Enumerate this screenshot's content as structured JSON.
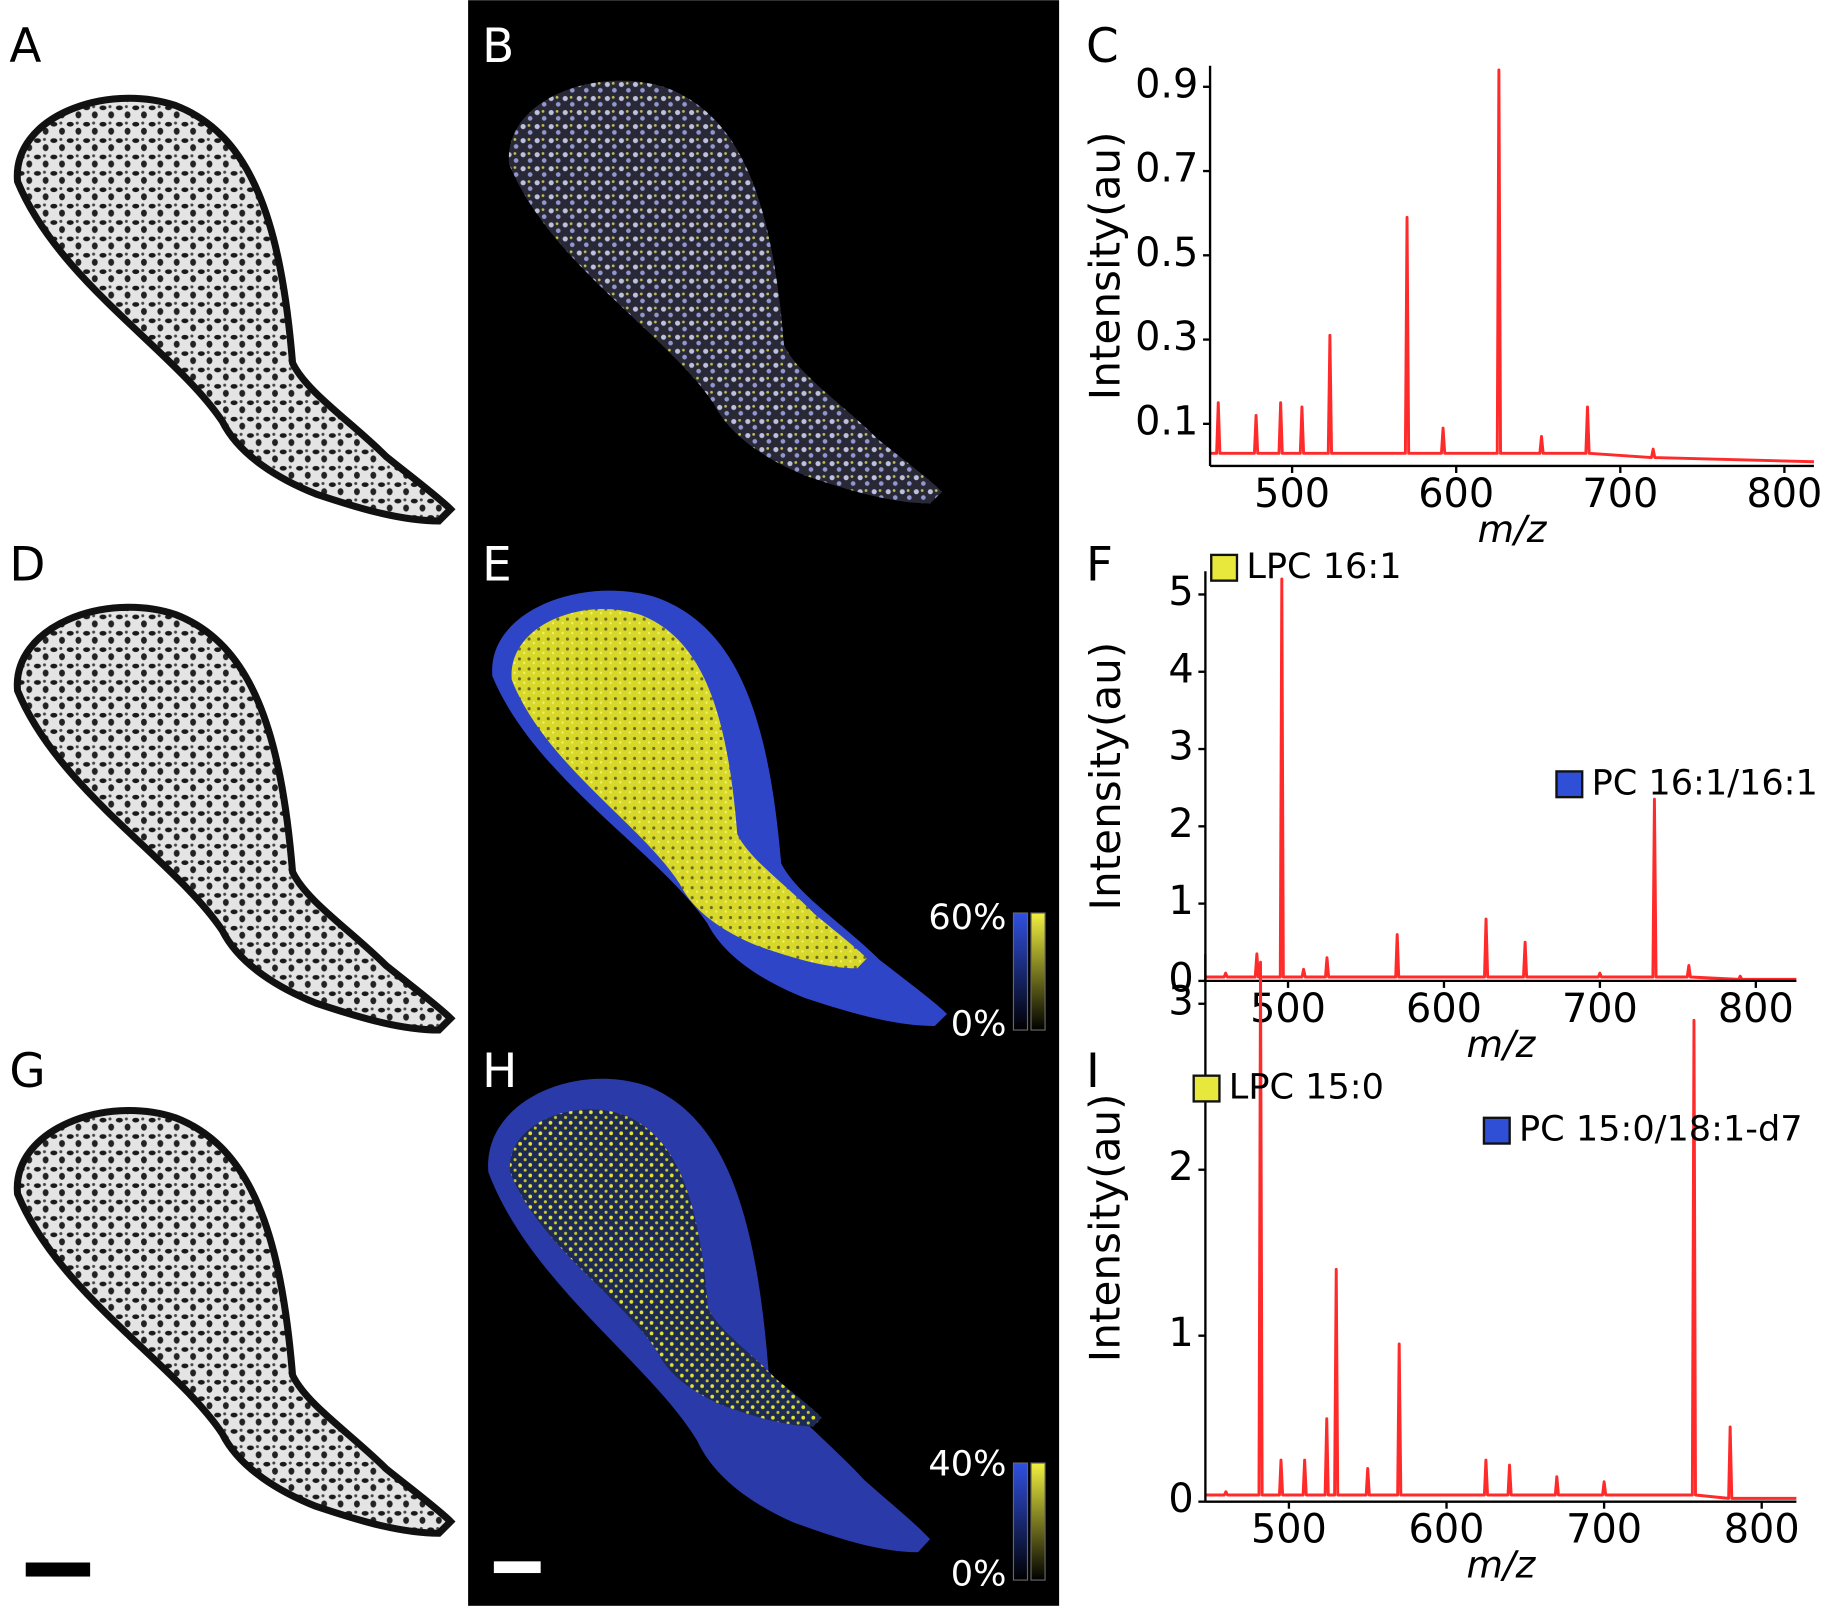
{
  "panel_labels": [
    "A",
    "B",
    "C",
    "D",
    "E",
    "F",
    "G",
    "H",
    "I"
  ],
  "colorbars": [
    {
      "max": "60%",
      "min": "0%"
    },
    {
      "max": "40%",
      "min": "0%"
    }
  ],
  "chart_data": [
    {
      "type": "line",
      "xlabel": "m/z",
      "ylabel": "Intensity(au)",
      "color": "#ff2a2a",
      "xlim": [
        450,
        818
      ],
      "ylim": [
        0,
        0.95
      ],
      "xticks": [
        500,
        600,
        700,
        800
      ],
      "yticks": [
        0.1,
        0.3,
        0.5,
        0.7,
        0.9
      ],
      "x": [
        450,
        454,
        455,
        456,
        477,
        478,
        479,
        492,
        493,
        494,
        505,
        506,
        507,
        522,
        523,
        524,
        569,
        570,
        571,
        591,
        592,
        593,
        625,
        626,
        627,
        651,
        652,
        653,
        679,
        680,
        681,
        719,
        720,
        721,
        818
      ],
      "values": [
        0.03,
        0.03,
        0.15,
        0.03,
        0.03,
        0.12,
        0.03,
        0.03,
        0.15,
        0.03,
        0.03,
        0.14,
        0.03,
        0.03,
        0.31,
        0.03,
        0.03,
        0.59,
        0.03,
        0.03,
        0.09,
        0.03,
        0.03,
        0.94,
        0.03,
        0.03,
        0.07,
        0.03,
        0.03,
        0.14,
        0.03,
        0.02,
        0.04,
        0.02,
        0.01
      ]
    },
    {
      "type": "line",
      "xlabel": "m/z",
      "ylabel": "Intensity(au)",
      "color": "#ff2a2a",
      "xlim": [
        447,
        826
      ],
      "ylim": [
        0,
        5.3
      ],
      "xticks": [
        500,
        600,
        700,
        800
      ],
      "yticks": [
        0,
        1,
        2,
        3,
        4,
        5
      ],
      "annotations": [
        {
          "text": "LPC 16:1",
          "color": "#e8e83c"
        },
        {
          "text": "PC 16:1/16:1",
          "color": "#2e4fd6"
        }
      ],
      "x": [
        447,
        459,
        460,
        461,
        479,
        480,
        481,
        495,
        496,
        497,
        509,
        510,
        511,
        524,
        525,
        526,
        569,
        570,
        571,
        626,
        627,
        628,
        651,
        652,
        653,
        699,
        700,
        701,
        734,
        735,
        736,
        756,
        757,
        758,
        789,
        790,
        791,
        826
      ],
      "values": [
        0.05,
        0.05,
        0.1,
        0.05,
        0.05,
        0.35,
        0.05,
        0.05,
        5.2,
        0.05,
        0.05,
        0.15,
        0.05,
        0.05,
        0.3,
        0.05,
        0.05,
        0.6,
        0.05,
        0.05,
        0.8,
        0.05,
        0.05,
        0.5,
        0.05,
        0.05,
        0.1,
        0.05,
        0.05,
        2.35,
        0.05,
        0.05,
        0.2,
        0.05,
        0.02,
        0.06,
        0.02,
        0.02
      ]
    },
    {
      "type": "line",
      "xlabel": "m/z",
      "ylabel": "Intensity(au)",
      "color": "#ff2a2a",
      "xlim": [
        447,
        822
      ],
      "ylim": [
        0,
        3.3
      ],
      "xticks": [
        500,
        600,
        700,
        800
      ],
      "yticks": [
        0,
        1,
        2,
        3
      ],
      "annotations": [
        {
          "text": "LPC 15:0",
          "color": "#e8e83c"
        },
        {
          "text": "PC 15:0/18:1-d7",
          "color": "#2e4fd6"
        }
      ],
      "x": [
        447,
        459,
        460,
        461,
        481,
        482,
        483,
        494,
        495,
        496,
        509,
        510,
        511,
        523,
        524,
        525,
        529,
        530,
        531,
        549,
        550,
        551,
        569,
        570,
        571,
        624,
        625,
        626,
        639,
        640,
        641,
        669,
        670,
        671,
        699,
        700,
        701,
        756,
        757,
        758,
        779,
        780,
        781,
        822
      ],
      "values": [
        0.04,
        0.04,
        0.06,
        0.04,
        0.04,
        3.25,
        0.04,
        0.04,
        0.25,
        0.04,
        0.04,
        0.25,
        0.04,
        0.04,
        0.5,
        0.04,
        0.04,
        1.4,
        0.04,
        0.04,
        0.2,
        0.04,
        0.04,
        0.95,
        0.04,
        0.04,
        0.25,
        0.04,
        0.04,
        0.22,
        0.04,
        0.04,
        0.15,
        0.04,
        0.04,
        0.12,
        0.04,
        0.04,
        2.9,
        0.04,
        0.02,
        0.45,
        0.02,
        0.02
      ]
    }
  ]
}
